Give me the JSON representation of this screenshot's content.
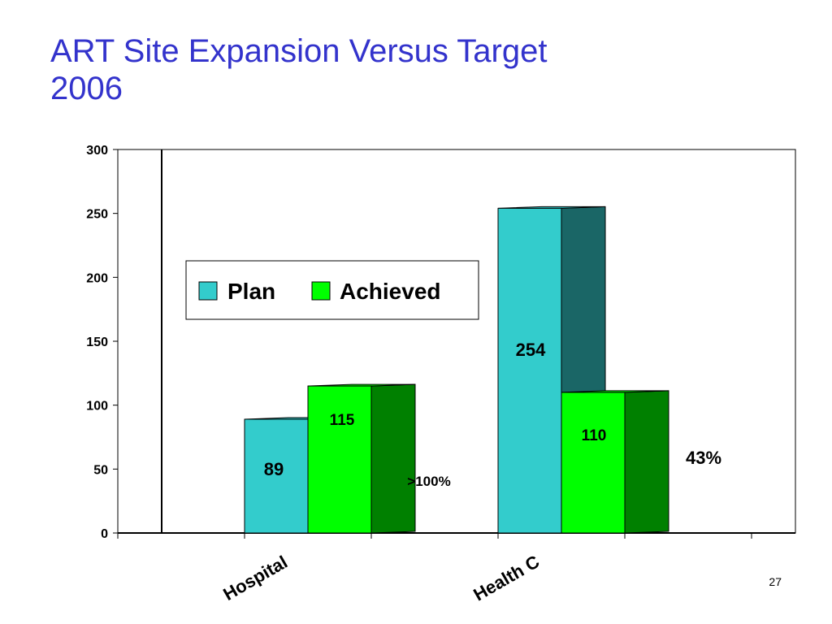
{
  "slide": {
    "title_line1": "ART Site Expansion Versus Target",
    "title_line2": "2006",
    "page_number": "27"
  },
  "colors": {
    "title": "#3333cc",
    "plan_front": "#33cccc",
    "plan_side": "#1a6666",
    "achieved_front": "#00ff00",
    "achieved_side": "#008000"
  },
  "chart_data": {
    "type": "bar",
    "title": "",
    "xlabel": "",
    "ylabel": "",
    "categories": [
      "Hospital",
      "Health C"
    ],
    "series": [
      {
        "name": "Plan",
        "values": [
          89,
          254
        ]
      },
      {
        "name": "Achieved",
        "values": [
          115,
          110
        ]
      }
    ],
    "data_labels": {
      "Plan": [
        "89",
        "254"
      ],
      "Achieved": [
        "115",
        "110"
      ]
    },
    "annotations": [
      ">100%",
      "43%"
    ],
    "ylim": [
      0,
      300
    ],
    "yticks": [
      0,
      50,
      100,
      150,
      200,
      250,
      300
    ],
    "legend": {
      "position": "upper-left",
      "entries": [
        "Plan",
        "Achieved"
      ]
    },
    "grid": false,
    "style": "3d-clustered"
  }
}
